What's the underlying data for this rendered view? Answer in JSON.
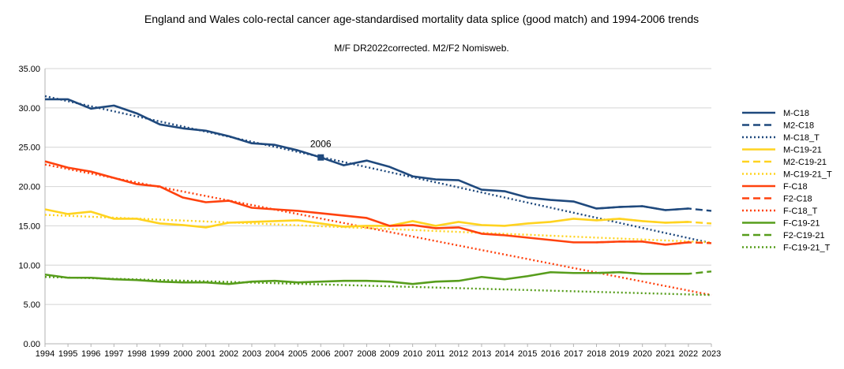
{
  "chart_data": {
    "type": "line",
    "title": "England and Wales colo-rectal cancer age-standardised mortality data splice (good match) and 1994-2006 trends",
    "subtitle": "M/F DR2022corrected. M2/F2 Nomisweb.",
    "xlabel": "",
    "ylabel": "",
    "ylim": [
      0,
      35
    ],
    "yticks": [
      "0.00",
      "5.00",
      "10.00",
      "15.00",
      "20.00",
      "25.00",
      "30.00",
      "35.00"
    ],
    "ytick_values": [
      0,
      5,
      10,
      15,
      20,
      25,
      30,
      35
    ],
    "x": [
      1994,
      1995,
      1996,
      1997,
      1998,
      1999,
      2000,
      2001,
      2002,
      2003,
      2004,
      2005,
      2006,
      2007,
      2008,
      2009,
      2010,
      2011,
      2012,
      2013,
      2014,
      2015,
      2016,
      2017,
      2018,
      2019,
      2020,
      2021,
      2022,
      2023
    ],
    "xticks": [
      "1994",
      "1995",
      "1996",
      "1997",
      "1998",
      "1999",
      "2000",
      "2001",
      "2002",
      "2003",
      "2004",
      "2005",
      "2006",
      "2007",
      "2008",
      "2009",
      "2010",
      "2011",
      "2012",
      "2013",
      "2014",
      "2015",
      "2016",
      "2017",
      "2018",
      "2019",
      "2020",
      "2021",
      "2022",
      "2023"
    ],
    "grid": true,
    "legend_position": "right",
    "annotation": {
      "text": "2006",
      "x": 2006,
      "y": 23.7,
      "series": "M-C18"
    },
    "series": [
      {
        "name": "M-C18",
        "color": "#1f497d",
        "style": "solid",
        "x": [
          1994,
          1995,
          1996,
          1997,
          1998,
          1999,
          2000,
          2001,
          2002,
          2003,
          2004,
          2005,
          2006,
          2007,
          2008,
          2009,
          2010,
          2011,
          2012,
          2013,
          2014,
          2015,
          2016,
          2017,
          2018,
          2019,
          2020,
          2021,
          2022
        ],
        "values": [
          31.1,
          31.1,
          29.9,
          30.3,
          29.3,
          27.9,
          27.4,
          27.1,
          26.4,
          25.5,
          25.3,
          24.6,
          23.7,
          22.7,
          23.3,
          22.5,
          21.3,
          20.9,
          20.8,
          19.6,
          19.4,
          18.6,
          18.3,
          18.1,
          17.2,
          17.4,
          17.5,
          17.0,
          17.2
        ]
      },
      {
        "name": "M2-C18",
        "color": "#1f497d",
        "style": "dashed",
        "x": [
          2018,
          2019,
          2020,
          2021,
          2022,
          2023
        ],
        "values": [
          17.2,
          17.4,
          17.5,
          17.0,
          17.2,
          16.9
        ]
      },
      {
        "name": "M-C18_T",
        "color": "#1f497d",
        "style": "dotted",
        "x": [
          1994,
          2023
        ],
        "values": [
          31.5,
          12.8
        ]
      },
      {
        "name": "M-C19-21",
        "color": "#ffd320",
        "style": "solid",
        "x": [
          1994,
          1995,
          1996,
          1997,
          1998,
          1999,
          2000,
          2001,
          2002,
          2003,
          2004,
          2005,
          2006,
          2007,
          2008,
          2009,
          2010,
          2011,
          2012,
          2013,
          2014,
          2015,
          2016,
          2017,
          2018,
          2019,
          2020,
          2021,
          2022
        ],
        "values": [
          17.1,
          16.5,
          16.8,
          15.9,
          15.9,
          15.3,
          15.1,
          14.8,
          15.4,
          15.5,
          15.6,
          15.7,
          15.3,
          14.9,
          15.0,
          15.0,
          15.6,
          15.0,
          15.5,
          15.1,
          15.0,
          15.3,
          15.5,
          15.9,
          15.7,
          15.9,
          15.6,
          15.4,
          15.5
        ]
      },
      {
        "name": "M2-C19-21",
        "color": "#ffd320",
        "style": "dashed",
        "x": [
          2018,
          2019,
          2020,
          2021,
          2022,
          2023
        ],
        "values": [
          15.7,
          15.9,
          15.6,
          15.4,
          15.5,
          15.3
        ]
      },
      {
        "name": "M-C19-21_T",
        "color": "#ffd320",
        "style": "dotted",
        "x": [
          1994,
          2023
        ],
        "values": [
          16.4,
          12.9
        ]
      },
      {
        "name": "F-C18",
        "color": "#ff420e",
        "style": "solid",
        "x": [
          1994,
          1995,
          1996,
          1997,
          1998,
          1999,
          2000,
          2001,
          2002,
          2003,
          2004,
          2005,
          2006,
          2007,
          2008,
          2009,
          2010,
          2011,
          2012,
          2013,
          2014,
          2015,
          2016,
          2017,
          2018,
          2019,
          2020,
          2021,
          2022
        ],
        "values": [
          23.2,
          22.4,
          21.9,
          21.1,
          20.3,
          20.0,
          18.6,
          18.0,
          18.2,
          17.3,
          17.1,
          16.9,
          16.6,
          16.3,
          16.0,
          15.0,
          15.1,
          14.7,
          14.8,
          14.0,
          13.8,
          13.5,
          13.2,
          12.9,
          12.9,
          13.0,
          13.0,
          12.6,
          12.9
        ]
      },
      {
        "name": "F2-C18",
        "color": "#ff420e",
        "style": "dashed",
        "x": [
          2018,
          2019,
          2020,
          2021,
          2022,
          2023
        ],
        "values": [
          12.9,
          13.0,
          13.0,
          12.6,
          12.9,
          12.8
        ]
      },
      {
        "name": "F-C18_T",
        "color": "#ff420e",
        "style": "dotted",
        "x": [
          1994,
          2023
        ],
        "values": [
          22.8,
          6.2
        ]
      },
      {
        "name": "F-C19-21",
        "color": "#579d1c",
        "style": "solid",
        "x": [
          1994,
          1995,
          1996,
          1997,
          1998,
          1999,
          2000,
          2001,
          2002,
          2003,
          2004,
          2005,
          2006,
          2007,
          2008,
          2009,
          2010,
          2011,
          2012,
          2013,
          2014,
          2015,
          2016,
          2017,
          2018,
          2019,
          2020,
          2021,
          2022
        ],
        "values": [
          8.8,
          8.4,
          8.4,
          8.2,
          8.1,
          7.9,
          7.8,
          7.8,
          7.6,
          7.9,
          8.0,
          7.8,
          7.9,
          8.0,
          8.0,
          7.9,
          7.6,
          7.9,
          8.0,
          8.5,
          8.2,
          8.6,
          9.1,
          9.0,
          9.0,
          9.1,
          8.9,
          8.9,
          8.9
        ]
      },
      {
        "name": "F2-C19-21",
        "color": "#579d1c",
        "style": "dashed",
        "x": [
          2018,
          2019,
          2020,
          2021,
          2022,
          2023
        ],
        "values": [
          9.0,
          9.1,
          8.9,
          8.9,
          8.9,
          9.2
        ]
      },
      {
        "name": "F-C19-21_T",
        "color": "#579d1c",
        "style": "dotted",
        "x": [
          1994,
          2023
        ],
        "values": [
          8.5,
          6.2
        ]
      }
    ]
  }
}
